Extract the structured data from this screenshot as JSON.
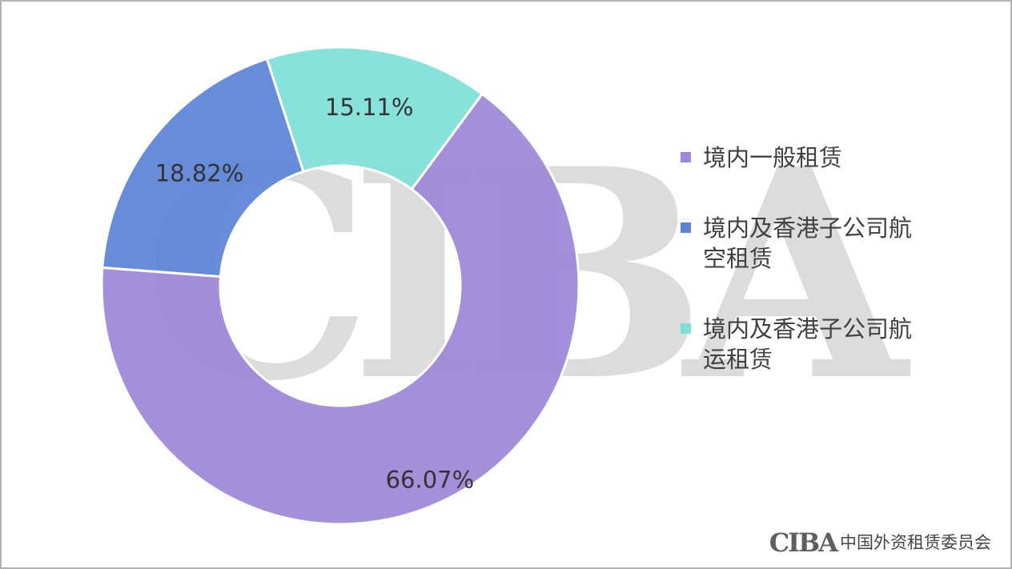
{
  "chart_data": {
    "type": "pie",
    "categories": [
      "境内一般租赁",
      "境内及香港子公司航空租赁",
      "境内及香港子公司航运租赁"
    ],
    "values": [
      66.07,
      18.82,
      15.11
    ],
    "value_labels": [
      "66.07%",
      "18.82%",
      "15.11%"
    ],
    "colors": [
      "#9d87d8",
      "#5b83d6",
      "#7fe0d9"
    ],
    "donut": true,
    "legend_position": "right",
    "title": ""
  },
  "watermark": {
    "text": "CIBA",
    "color": "#dcdcdc"
  },
  "footer": {
    "logo_text": "CIBA",
    "org_name": "中国外资租赁委员会"
  }
}
